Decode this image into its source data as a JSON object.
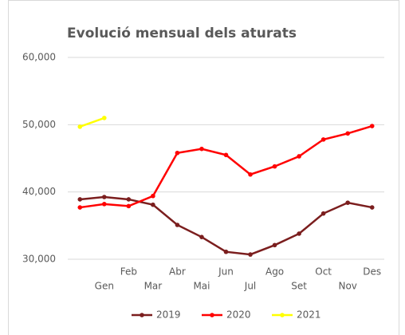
{
  "chart_data": {
    "type": "line",
    "title": "Evolució mensual dels aturats",
    "categories": [
      null,
      "Gen",
      "Feb",
      "Mar",
      "Abr",
      "Mai",
      "Jun",
      "Jul",
      "Ago",
      "Set",
      "Oct",
      "Nov",
      "Des"
    ],
    "series": [
      {
        "name": "2019",
        "color": "#7b1e1e",
        "values": [
          38900,
          39250,
          38900,
          38100,
          35100,
          33300,
          31100,
          30700,
          32100,
          33800,
          36800,
          38400,
          37700
        ]
      },
      {
        "name": "2020",
        "color": "#ff0000",
        "values": [
          37700,
          38200,
          37900,
          39400,
          45800,
          46400,
          45500,
          42600,
          43800,
          45300,
          47800,
          48700,
          49800
        ]
      },
      {
        "name": "2021",
        "color": "#ffff00",
        "values": [
          49700,
          51000,
          null,
          null,
          null,
          null,
          null,
          null,
          null,
          null,
          null,
          null,
          null
        ]
      }
    ],
    "ylim": [
      30000,
      60000
    ],
    "yticks": [
      {
        "value": 30000,
        "label": "30,000"
      },
      {
        "value": 40000,
        "label": "40,000"
      },
      {
        "value": 50000,
        "label": "50,000"
      },
      {
        "value": 60000,
        "label": "60,000"
      }
    ],
    "grid": true,
    "legend": "bottom"
  }
}
